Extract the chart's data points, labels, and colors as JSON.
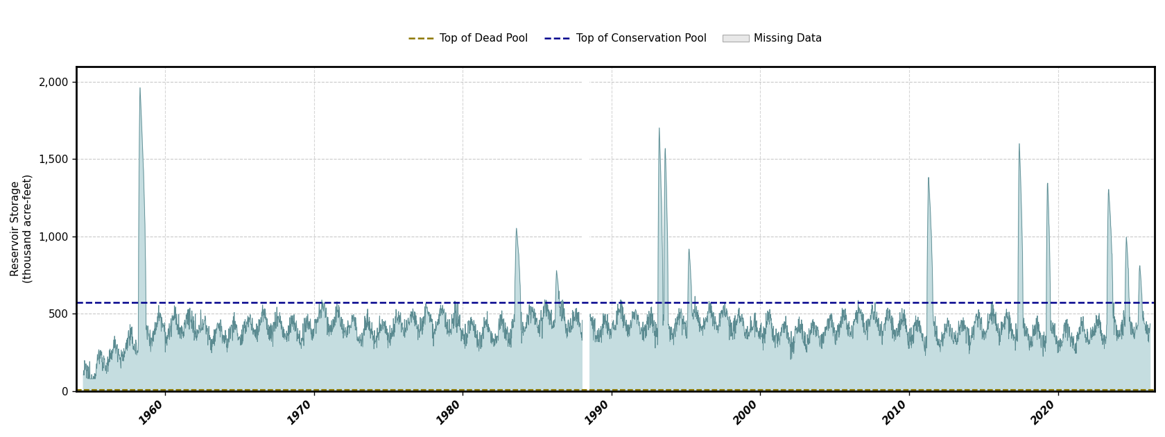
{
  "ylabel": "Reservoir Storage\n(thousand acre-feet)",
  "xlim_start": 1954.0,
  "xlim_end": 2026.5,
  "ylim": [
    0,
    2100
  ],
  "yticks": [
    0,
    500,
    1000,
    1500,
    2000
  ],
  "ytick_labels": [
    "0",
    "500",
    "1,000",
    "1,500",
    "2,000"
  ],
  "xticks": [
    1960,
    1970,
    1980,
    1990,
    2000,
    2010,
    2020
  ],
  "top_of_conservation_pool": 575,
  "fill_color": "#c5dde0",
  "line_color": "#5a8a90",
  "dead_pool_color": "#8B7500",
  "conservation_pool_color": "#00008B",
  "missing_data_color": "#e8e8e8",
  "background_color": "#ffffff",
  "grid_color": "#bbbbbb",
  "legend_fontsize": 11,
  "ylabel_fontsize": 11,
  "tick_fontsize": 11
}
